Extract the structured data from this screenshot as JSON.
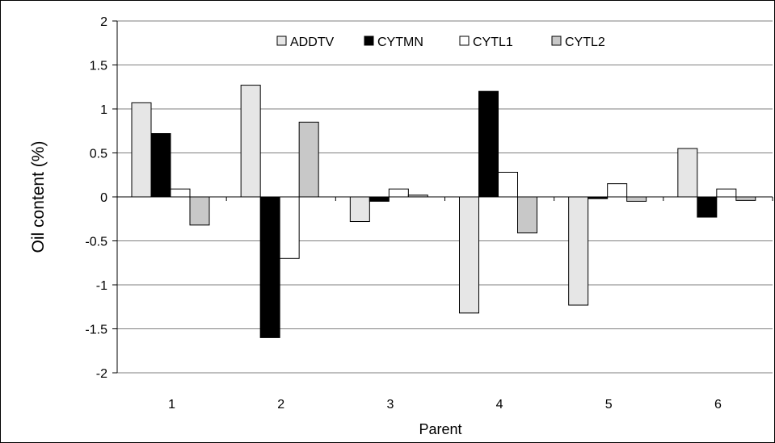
{
  "chart_data": {
    "type": "bar",
    "title": "",
    "xlabel": "Parent",
    "ylabel": "Oil content (%)",
    "ylim": [
      -2,
      2
    ],
    "yticks": [
      "2",
      "1.5",
      "1",
      "0.5",
      "0",
      "-0.5",
      "-1",
      "-1.5",
      "-2"
    ],
    "ytick_values": [
      2,
      1.5,
      1,
      0.5,
      0,
      -0.5,
      -1,
      -1.5,
      -2
    ],
    "categories": [
      "1",
      "2",
      "3",
      "4",
      "5",
      "6"
    ],
    "grid": "horizontal",
    "legend_position": "top",
    "series": [
      {
        "name": "ADDTV",
        "color": "#e6e6e6",
        "values": [
          1.07,
          1.27,
          -0.28,
          -1.32,
          -1.23,
          0.55
        ]
      },
      {
        "name": "CYTMN",
        "color": "#000000",
        "values": [
          0.72,
          -1.6,
          -0.05,
          1.2,
          -0.02,
          -0.23
        ]
      },
      {
        "name": "CYTL1",
        "color": "#ffffff",
        "values": [
          0.09,
          -0.7,
          0.09,
          0.28,
          0.15,
          0.09
        ]
      },
      {
        "name": "CYTL2",
        "color": "#c8c8c8",
        "values": [
          -0.32,
          0.85,
          0.02,
          -0.41,
          -0.05,
          -0.04
        ]
      }
    ]
  }
}
